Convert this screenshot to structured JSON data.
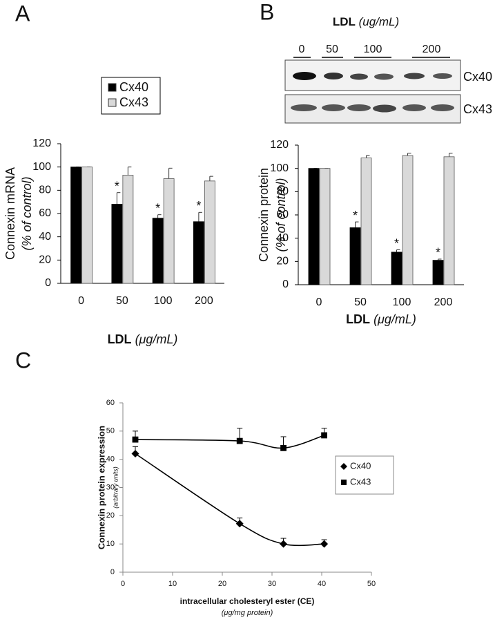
{
  "panel_labels": [
    "A",
    "B",
    "C"
  ],
  "blot": {
    "title": "LDL",
    "title_unit": "(ug/mL)",
    "lanes": [
      "0",
      "50",
      "100",
      "200"
    ],
    "bands": [
      "Cx40",
      "Cx43"
    ]
  },
  "chart_data": [
    {
      "type": "bar",
      "y_label": "Connexin mRNA",
      "y_label_unit": "(% of control)",
      "x_label": "LDL",
      "x_label_unit": "(μg/mL)",
      "categories": [
        "0",
        "50",
        "100",
        "200"
      ],
      "series": [
        {
          "name": "Cx40",
          "color": "#000000",
          "values": [
            100,
            68,
            56,
            53
          ],
          "errors": [
            0,
            10,
            3,
            8
          ],
          "annotations": [
            null,
            "*",
            "*",
            "*"
          ]
        },
        {
          "name": "Cx43",
          "color": "#d9d9d9",
          "values": [
            100,
            93,
            90,
            88
          ],
          "errors": [
            0,
            7,
            9,
            4
          ]
        }
      ],
      "ylim": [
        0,
        120
      ],
      "yticks": [
        0,
        20,
        40,
        60,
        80,
        100,
        120
      ],
      "legend": "top"
    },
    {
      "type": "bar",
      "y_label": "Connexin protein",
      "y_label_unit": "(% of control)",
      "x_label": "LDL",
      "x_label_unit": "(μg/mL)",
      "categories": [
        "0",
        "50",
        "100",
        "200"
      ],
      "series": [
        {
          "name": "Cx40",
          "color": "#000000",
          "values": [
            100,
            49,
            28,
            21
          ],
          "errors": [
            0,
            5,
            2,
            1
          ],
          "annotations": [
            null,
            "*",
            "*",
            "*"
          ]
        },
        {
          "name": "Cx43",
          "color": "#d9d9d9",
          "values": [
            100,
            109,
            111,
            110
          ],
          "errors": [
            0,
            2,
            2,
            3
          ]
        }
      ],
      "ylim": [
        0,
        120
      ],
      "yticks": [
        0,
        20,
        40,
        60,
        80,
        100,
        120
      ],
      "legend": "none"
    },
    {
      "type": "line",
      "y_label": "Connexin protein expression",
      "y_label_unit": "(arbitrary units)",
      "x_label": "intracellular cholesteryl ester (CE)",
      "x_label_unit": "(μg/mg protein)",
      "series": [
        {
          "name": "Cx40",
          "color": "#000000",
          "marker": "diamond",
          "x": [
            2.5,
            23.5,
            32.3,
            40.5
          ],
          "values": [
            42,
            17.2,
            10,
            10
          ],
          "errors": [
            2.5,
            2,
            2,
            1.5
          ]
        },
        {
          "name": "Cx43",
          "color": "#000000",
          "marker": "square",
          "x": [
            2.5,
            23.5,
            32.3,
            40.5
          ],
          "values": [
            47,
            46.5,
            44,
            48.5
          ],
          "errors": [
            3,
            4.5,
            4,
            2.5
          ]
        }
      ],
      "xlim": [
        0,
        50
      ],
      "xticks": [
        0,
        10,
        20,
        30,
        40,
        50
      ],
      "ylim": [
        0,
        60
      ],
      "yticks": [
        0,
        10,
        20,
        30,
        40,
        50,
        60
      ],
      "legend": "right"
    }
  ]
}
